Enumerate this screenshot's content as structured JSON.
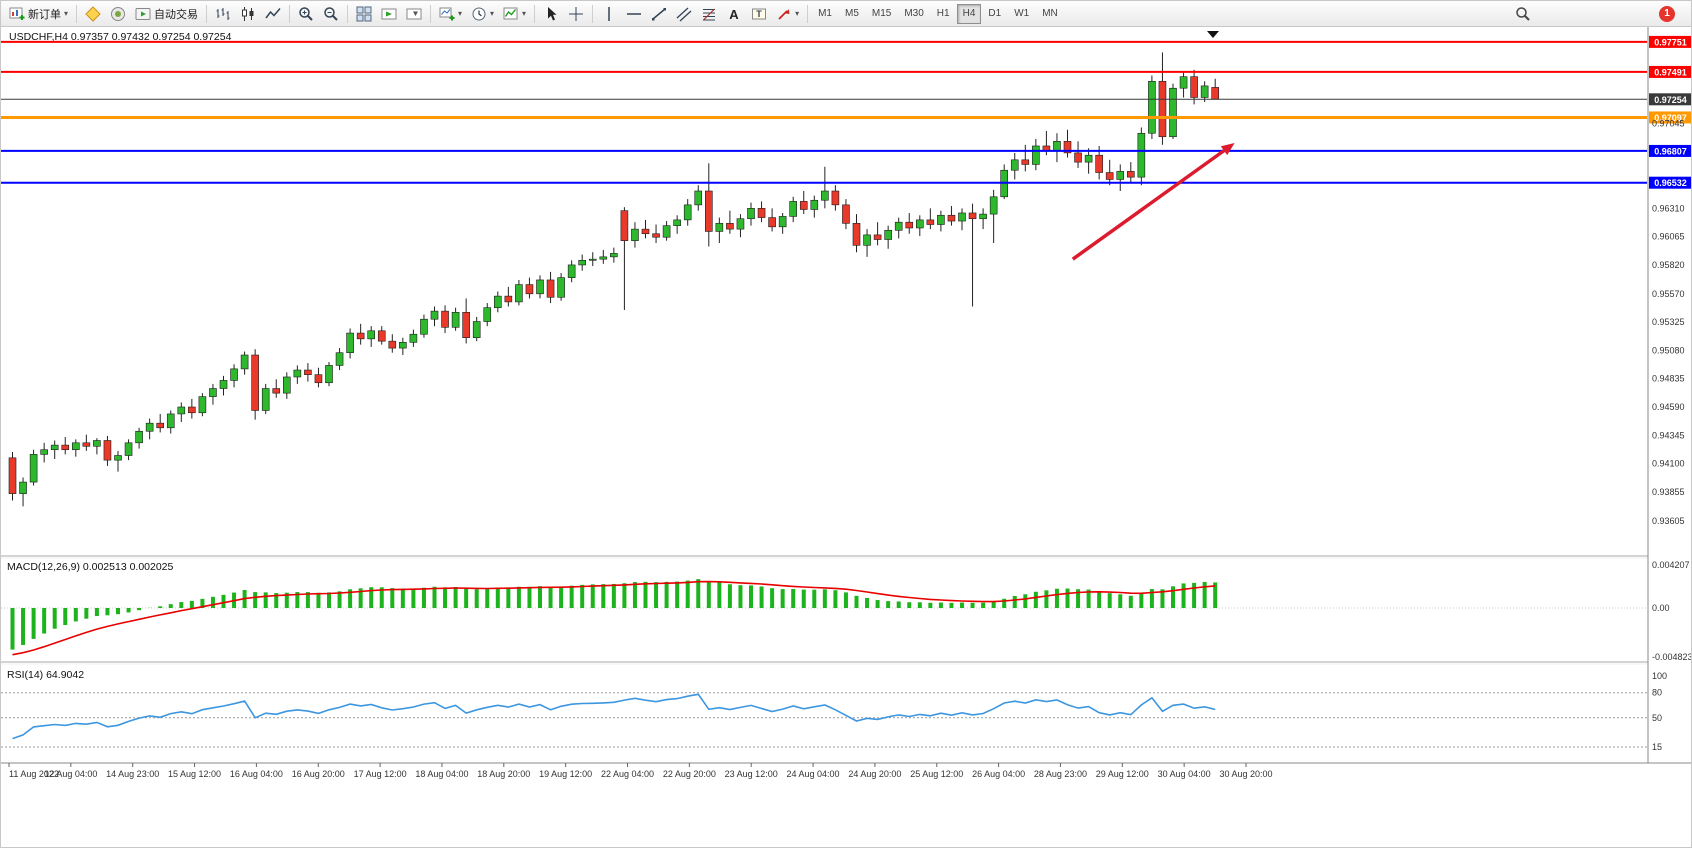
{
  "toolbar": {
    "new_order_label": "新订单",
    "autotrading_label": "自动交易",
    "timeframes": [
      "M1",
      "M5",
      "M15",
      "M30",
      "H1",
      "H4",
      "D1",
      "W1",
      "MN"
    ],
    "selected_timeframe": "H4",
    "notification_count": "1"
  },
  "icons": {
    "dropdown_caret": "▾",
    "text_tool": "A",
    "label_tool": "T"
  },
  "chart_data": {
    "type": "candlestick",
    "symbol": "USDCHF",
    "period": "H4",
    "header": "USDCHF,H4  0.97357 0.97432 0.97254 0.97254",
    "ohlc_current": {
      "open": "0.97357",
      "high": "0.97432",
      "low": "0.97254",
      "close": "0.97254"
    },
    "colors": {
      "bull": "#2db82d",
      "bear": "#e8392b",
      "wick": "#222222",
      "macd_hist": "#1db31d",
      "macd_signal": "#e80000",
      "rsi_line": "#3d96e0"
    },
    "price_axis": {
      "max": 0.9788,
      "min": 0.933,
      "ticks": [
        "0.97045",
        "0.96310",
        "0.96065",
        "0.95820",
        "0.95570",
        "0.95325",
        "0.95080",
        "0.94835",
        "0.94590",
        "0.94345",
        "0.94100",
        "0.93855",
        "0.93605"
      ]
    },
    "hlines": [
      {
        "price": 0.97751,
        "color": "#ff0000",
        "width": 2,
        "label": "0.97751"
      },
      {
        "price": 0.97491,
        "color": "#ff0000",
        "width": 2,
        "label": "0.97491"
      },
      {
        "price": 0.97254,
        "color": "#3a3a3a",
        "width": 1,
        "label": "0.97254"
      },
      {
        "price": 0.97097,
        "color": "#ff9900",
        "width": 3,
        "label": "0.97097"
      },
      {
        "price": 0.96807,
        "color": "#0000ff",
        "width": 2,
        "label": "0.96807"
      },
      {
        "price": 0.96532,
        "color": "#0000ff",
        "width": 2,
        "label": "0.96532"
      }
    ],
    "trend_arrow": {
      "from_bar": 100.5,
      "from_price": 0.9587,
      "to_bar": 115.3,
      "to_price": 0.9684,
      "color": "#dc1c2e"
    },
    "candles": [
      [
        0.9415,
        0.942,
        0.9378,
        0.9384
      ],
      [
        0.9384,
        0.9398,
        0.9373,
        0.9394
      ],
      [
        0.9394,
        0.9422,
        0.9391,
        0.9418
      ],
      [
        0.9418,
        0.9428,
        0.9411,
        0.9422
      ],
      [
        0.9422,
        0.943,
        0.9414,
        0.9426
      ],
      [
        0.9426,
        0.9433,
        0.9418,
        0.9422
      ],
      [
        0.9422,
        0.9431,
        0.9416,
        0.9428
      ],
      [
        0.9428,
        0.9435,
        0.9421,
        0.9425
      ],
      [
        0.9425,
        0.9432,
        0.9418,
        0.943
      ],
      [
        0.943,
        0.9434,
        0.9408,
        0.9413
      ],
      [
        0.9413,
        0.9421,
        0.9403,
        0.9417
      ],
      [
        0.9417,
        0.9431,
        0.9413,
        0.9428
      ],
      [
        0.9428,
        0.9441,
        0.9423,
        0.9438
      ],
      [
        0.9438,
        0.9449,
        0.9431,
        0.9445
      ],
      [
        0.9445,
        0.9453,
        0.9437,
        0.9441
      ],
      [
        0.9441,
        0.9456,
        0.9436,
        0.9453
      ],
      [
        0.9453,
        0.9463,
        0.9446,
        0.9459
      ],
      [
        0.9459,
        0.9466,
        0.9449,
        0.9454
      ],
      [
        0.9454,
        0.9471,
        0.9451,
        0.9468
      ],
      [
        0.9468,
        0.9479,
        0.9461,
        0.9475
      ],
      [
        0.9475,
        0.9486,
        0.9469,
        0.9482
      ],
      [
        0.9482,
        0.9496,
        0.9476,
        0.9492
      ],
      [
        0.9492,
        0.9507,
        0.9487,
        0.9504
      ],
      [
        0.9504,
        0.9509,
        0.9448,
        0.9456
      ],
      [
        0.9456,
        0.9479,
        0.9453,
        0.9475
      ],
      [
        0.9475,
        0.9483,
        0.9467,
        0.9471
      ],
      [
        0.9471,
        0.9489,
        0.9466,
        0.9485
      ],
      [
        0.9485,
        0.9495,
        0.9479,
        0.9491
      ],
      [
        0.9491,
        0.9497,
        0.9481,
        0.9487
      ],
      [
        0.9487,
        0.9493,
        0.9476,
        0.948
      ],
      [
        0.948,
        0.9498,
        0.9477,
        0.9495
      ],
      [
        0.9495,
        0.951,
        0.9491,
        0.9506
      ],
      [
        0.9506,
        0.9527,
        0.9501,
        0.9523
      ],
      [
        0.9523,
        0.9531,
        0.9513,
        0.9518
      ],
      [
        0.9518,
        0.9529,
        0.9511,
        0.9525
      ],
      [
        0.9525,
        0.9529,
        0.9513,
        0.9516
      ],
      [
        0.9516,
        0.9522,
        0.9506,
        0.951
      ],
      [
        0.951,
        0.9519,
        0.9504,
        0.9515
      ],
      [
        0.9515,
        0.9526,
        0.9511,
        0.9522
      ],
      [
        0.9522,
        0.9539,
        0.9519,
        0.9535
      ],
      [
        0.9535,
        0.9546,
        0.9529,
        0.9542
      ],
      [
        0.9542,
        0.9547,
        0.9523,
        0.9528
      ],
      [
        0.9528,
        0.9545,
        0.9525,
        0.9541
      ],
      [
        0.9541,
        0.9553,
        0.9514,
        0.9519
      ],
      [
        0.9519,
        0.9537,
        0.9516,
        0.9533
      ],
      [
        0.9533,
        0.9549,
        0.9529,
        0.9545
      ],
      [
        0.9545,
        0.9559,
        0.9541,
        0.9555
      ],
      [
        0.9555,
        0.9563,
        0.9546,
        0.955
      ],
      [
        0.955,
        0.9569,
        0.9547,
        0.9565
      ],
      [
        0.9565,
        0.9571,
        0.9553,
        0.9557
      ],
      [
        0.9557,
        0.9573,
        0.9553,
        0.9569
      ],
      [
        0.9569,
        0.9576,
        0.9549,
        0.9554
      ],
      [
        0.9554,
        0.9575,
        0.9551,
        0.9571
      ],
      [
        0.9571,
        0.9586,
        0.9567,
        0.9582
      ],
      [
        0.9582,
        0.9591,
        0.9577,
        0.9586
      ],
      [
        0.9586,
        0.9593,
        0.9581,
        0.9587
      ],
      [
        0.9587,
        0.9595,
        0.9583,
        0.9589
      ],
      [
        0.9589,
        0.9597,
        0.9584,
        0.9592
      ],
      [
        0.9629,
        0.9632,
        0.9543,
        0.9603
      ],
      [
        0.9603,
        0.9619,
        0.9597,
        0.9613
      ],
      [
        0.9613,
        0.9621,
        0.9605,
        0.9609
      ],
      [
        0.9609,
        0.9617,
        0.9601,
        0.9606
      ],
      [
        0.9606,
        0.962,
        0.9603,
        0.9616
      ],
      [
        0.9616,
        0.9625,
        0.9609,
        0.9621
      ],
      [
        0.9621,
        0.9639,
        0.9616,
        0.9634
      ],
      [
        0.9634,
        0.9651,
        0.9629,
        0.9646
      ],
      [
        0.9646,
        0.967,
        0.9598,
        0.9611
      ],
      [
        0.9611,
        0.9623,
        0.9601,
        0.9618
      ],
      [
        0.9618,
        0.9629,
        0.9609,
        0.9613
      ],
      [
        0.9613,
        0.9626,
        0.9606,
        0.9622
      ],
      [
        0.9622,
        0.9636,
        0.9616,
        0.9631
      ],
      [
        0.9631,
        0.9637,
        0.9619,
        0.9623
      ],
      [
        0.9623,
        0.9631,
        0.9611,
        0.9615
      ],
      [
        0.9615,
        0.9627,
        0.9609,
        0.9624
      ],
      [
        0.9624,
        0.9641,
        0.9619,
        0.9637
      ],
      [
        0.9637,
        0.9646,
        0.9626,
        0.963
      ],
      [
        0.963,
        0.9642,
        0.9623,
        0.9638
      ],
      [
        0.9638,
        0.9667,
        0.9631,
        0.9646
      ],
      [
        0.9646,
        0.9651,
        0.9629,
        0.9634
      ],
      [
        0.9634,
        0.9639,
        0.9613,
        0.9618
      ],
      [
        0.9618,
        0.9626,
        0.9593,
        0.9599
      ],
      [
        0.9599,
        0.9613,
        0.9589,
        0.9608
      ],
      [
        0.9608,
        0.9619,
        0.9599,
        0.9604
      ],
      [
        0.9604,
        0.9616,
        0.9596,
        0.9612
      ],
      [
        0.9612,
        0.9623,
        0.9605,
        0.9619
      ],
      [
        0.9619,
        0.9627,
        0.9609,
        0.9614
      ],
      [
        0.9614,
        0.9625,
        0.9607,
        0.9621
      ],
      [
        0.9621,
        0.9631,
        0.9613,
        0.9617
      ],
      [
        0.9617,
        0.9629,
        0.9611,
        0.9625
      ],
      [
        0.9625,
        0.9633,
        0.9616,
        0.962
      ],
      [
        0.962,
        0.9631,
        0.9612,
        0.9627
      ],
      [
        0.9627,
        0.9635,
        0.9546,
        0.9622
      ],
      [
        0.9622,
        0.9631,
        0.9613,
        0.9626
      ],
      [
        0.9626,
        0.9647,
        0.9601,
        0.9641
      ],
      [
        0.9641,
        0.9669,
        0.9639,
        0.9664
      ],
      [
        0.9664,
        0.9679,
        0.9656,
        0.9673
      ],
      [
        0.9673,
        0.9686,
        0.9663,
        0.9669
      ],
      [
        0.9669,
        0.9691,
        0.9664,
        0.9685
      ],
      [
        0.9685,
        0.9698,
        0.9677,
        0.9681
      ],
      [
        0.9681,
        0.9696,
        0.9671,
        0.9689
      ],
      [
        0.9689,
        0.9699,
        0.9675,
        0.9679
      ],
      [
        0.9679,
        0.9689,
        0.9666,
        0.9671
      ],
      [
        0.9671,
        0.9683,
        0.9661,
        0.9677
      ],
      [
        0.9677,
        0.9685,
        0.9656,
        0.9662
      ],
      [
        0.9662,
        0.9673,
        0.9651,
        0.9656
      ],
      [
        0.9656,
        0.9669,
        0.9646,
        0.9663
      ],
      [
        0.9663,
        0.9671,
        0.9653,
        0.9658
      ],
      [
        0.9658,
        0.9701,
        0.9651,
        0.9696
      ],
      [
        0.9696,
        0.9746,
        0.9691,
        0.9741
      ],
      [
        0.9741,
        0.9766,
        0.9686,
        0.9693
      ],
      [
        0.9693,
        0.9739,
        0.9691,
        0.9735
      ],
      [
        0.9735,
        0.9749,
        0.9727,
        0.9745
      ],
      [
        0.9745,
        0.9751,
        0.9721,
        0.9727
      ],
      [
        0.9727,
        0.9741,
        0.9723,
        0.9737
      ],
      [
        0.97357,
        0.97432,
        0.97254,
        0.97254
      ]
    ],
    "macd": {
      "label": "MACD(12,26,9)",
      "value": "0.002513",
      "signal_value": "0.002025",
      "display": "MACD(12,26,9) 0.002513 0.002025",
      "params": {
        "fast": 12,
        "slow": 26,
        "signal": 9
      },
      "ticks": [
        "0.004207",
        "0.00",
        "-0.004823"
      ]
    },
    "rsi": {
      "label": "RSI(14)",
      "value": "64.9042",
      "display": "RSI(14) 64.9042",
      "period": 14,
      "levels": [
        80,
        50,
        15
      ],
      "ticks": [
        "100",
        "80",
        "50",
        "15"
      ]
    },
    "time_axis": [
      "11 Aug 2022",
      "12 Aug 04:00",
      "14 Aug 23:00",
      "15 Aug 12:00",
      "16 Aug 04:00",
      "16 Aug 20:00",
      "17 Aug 12:00",
      "18 Aug 04:00",
      "18 Aug 20:00",
      "19 Aug 12:00",
      "22 Aug 04:00",
      "22 Aug 20:00",
      "23 Aug 12:00",
      "24 Aug 04:00",
      "24 Aug 20:00",
      "25 Aug 12:00",
      "26 Aug 04:00",
      "28 Aug 23:00",
      "29 Aug 12:00",
      "30 Aug 04:00",
      "30 Aug 20:00"
    ]
  }
}
